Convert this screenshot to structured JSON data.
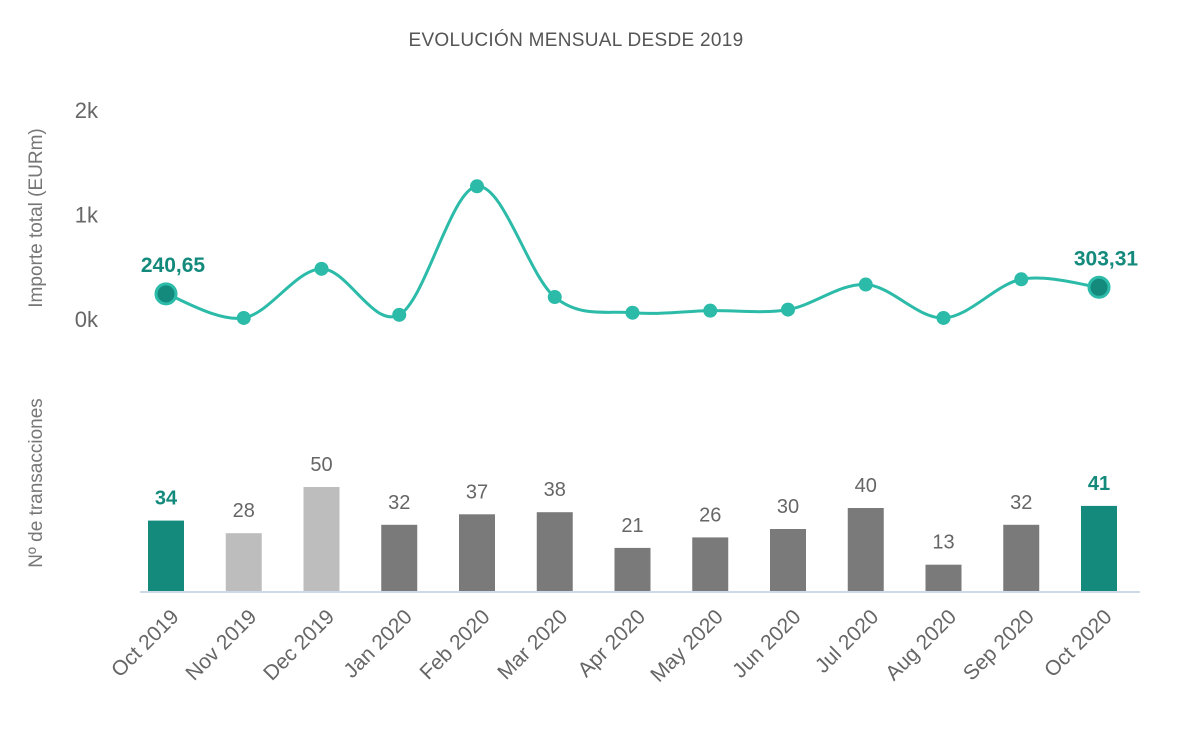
{
  "chart_data": {
    "title": "EVOLUCIÓN MENSUAL DESDE 2019",
    "categories": [
      "Oct 2019",
      "Nov 2019",
      "Dec 2019",
      "Jan 2020",
      "Feb 2020",
      "Mar 2020",
      "Apr 2020",
      "May 2020",
      "Jun 2020",
      "Jul 2020",
      "Aug 2020",
      "Sep 2020",
      "Oct 2020"
    ],
    "line": {
      "type": "line",
      "ylabel": "Importe total (EURm)",
      "yticks": [
        "0k",
        "1k",
        "2k"
      ],
      "ylim": [
        0,
        2000
      ],
      "values": [
        240.65,
        10,
        480,
        40,
        1270,
        210,
        60,
        80,
        90,
        330,
        10,
        380,
        303.31
      ],
      "point_labels": {
        "0": "240,65",
        "12": "303,31"
      },
      "color": "#2bbba8",
      "highlight_color": "#138a7c"
    },
    "bars": {
      "type": "bar",
      "ylabel": "Nº de transacciones",
      "values": [
        34,
        28,
        50,
        32,
        37,
        38,
        21,
        26,
        30,
        40,
        13,
        32,
        41
      ],
      "colors": [
        "#138a7c",
        "#bdbdbd",
        "#bdbdbd",
        "#7a7a7a",
        "#7a7a7a",
        "#7a7a7a",
        "#7a7a7a",
        "#7a7a7a",
        "#7a7a7a",
        "#7a7a7a",
        "#7a7a7a",
        "#7a7a7a",
        "#138a7c"
      ],
      "highlight_indices": [
        0,
        12
      ]
    }
  }
}
